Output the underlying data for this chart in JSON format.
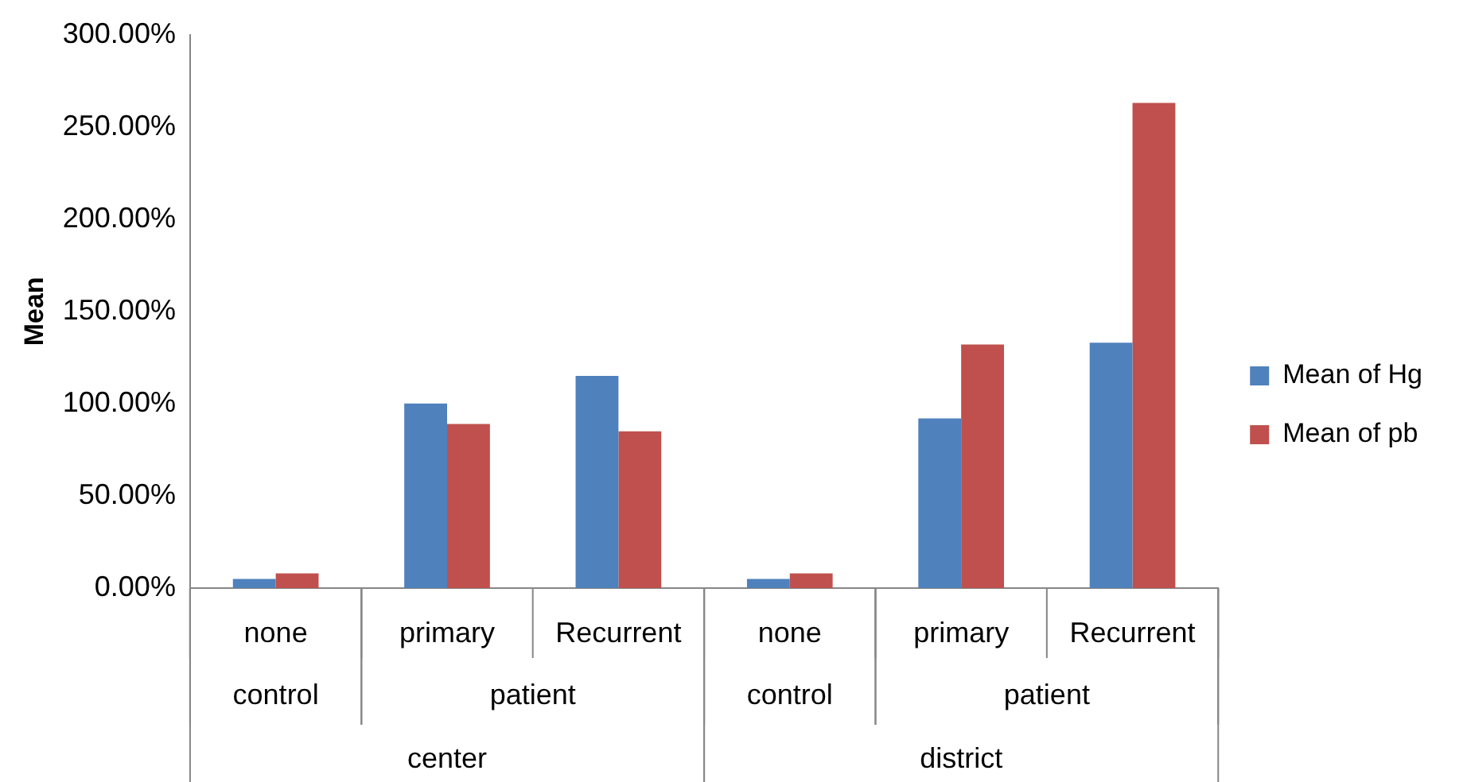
{
  "chart_data": {
    "type": "bar",
    "ylabel": "Mean",
    "categories": [
      "none",
      "primary",
      "Recurrent",
      "none",
      "primary",
      "Recurrent"
    ],
    "annotations": [
      "control",
      "patient",
      "control",
      "patient",
      "center",
      "district"
    ],
    "series": [
      {
        "name": "Mean of Hg",
        "color": "#4f81bd",
        "values": [
          5,
          100,
          115,
          5,
          92,
          133
        ]
      },
      {
        "name": "Mean of pb",
        "color": "#c0504d",
        "values": [
          8,
          89,
          85,
          8,
          132,
          263
        ]
      }
    ],
    "ylim": [
      0,
      300
    ],
    "yticks": [
      {
        "value": 0,
        "label": "0.00%"
      },
      {
        "value": 50,
        "label": "50.00%"
      },
      {
        "value": 100,
        "label": "100.00%"
      },
      {
        "value": 150,
        "label": "150.00%"
      },
      {
        "value": 200,
        "label": "200.00%"
      },
      {
        "value": 250,
        "label": "250.00%"
      },
      {
        "value": 300,
        "label": "300.00%"
      }
    ],
    "grid": false,
    "legend": "right"
  }
}
